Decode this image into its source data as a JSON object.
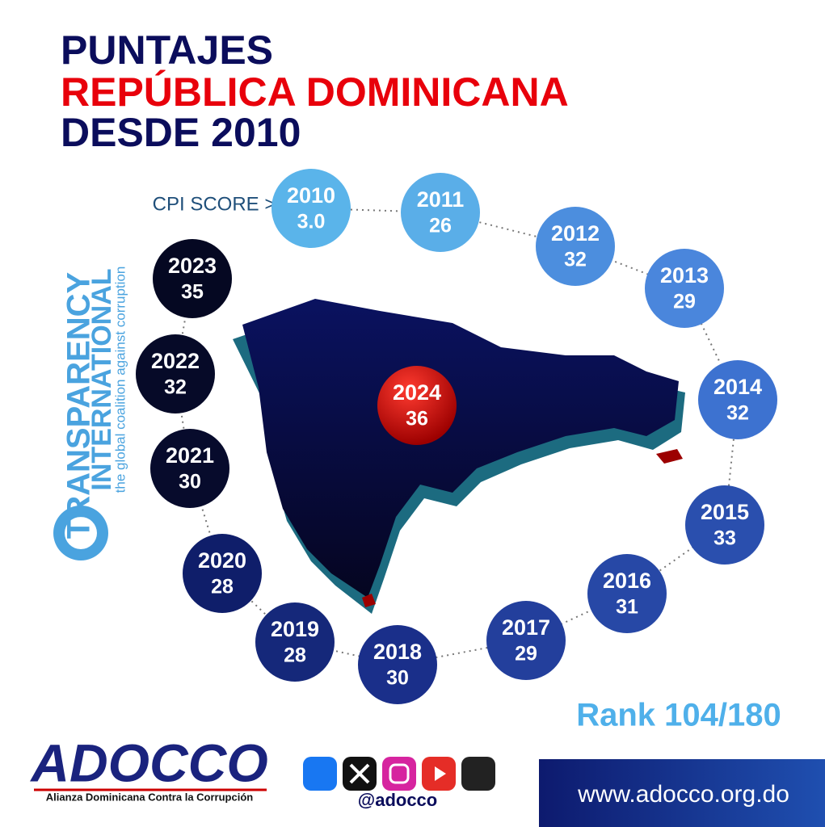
{
  "header": {
    "lines": [
      "PUNTAJES",
      "REPÚBLICA DOMINICANA",
      "DESDE 2010"
    ]
  },
  "score_label": "CPI SCORE >",
  "scores": [
    {
      "year": "2010",
      "score": "3.0"
    },
    {
      "year": "2011",
      "score": "26"
    },
    {
      "year": "2012",
      "score": "32"
    },
    {
      "year": "2013",
      "score": "29"
    },
    {
      "year": "2014",
      "score": "32"
    },
    {
      "year": "2015",
      "score": "33"
    },
    {
      "year": "2016",
      "score": "31"
    },
    {
      "year": "2017",
      "score": "29"
    },
    {
      "year": "2018",
      "score": "30"
    },
    {
      "year": "2019",
      "score": "28"
    },
    {
      "year": "2020",
      "score": "28"
    },
    {
      "year": "2021",
      "score": "30"
    },
    {
      "year": "2022",
      "score": "32"
    },
    {
      "year": "2023",
      "score": "35"
    }
  ],
  "current": {
    "year": "2024",
    "score": "36"
  },
  "rank": "Rank 104/180",
  "logo": {
    "line1": "TRANSPARENCY",
    "line2": "INTERNATIONAL",
    "tagline": "the global coalition against corruption"
  },
  "footer": {
    "org": "ADOCCO",
    "org_full": "Alianza Dominicana Contra la Corrupción",
    "handle": "@adocco",
    "url": "www.adocco.org.do"
  }
}
